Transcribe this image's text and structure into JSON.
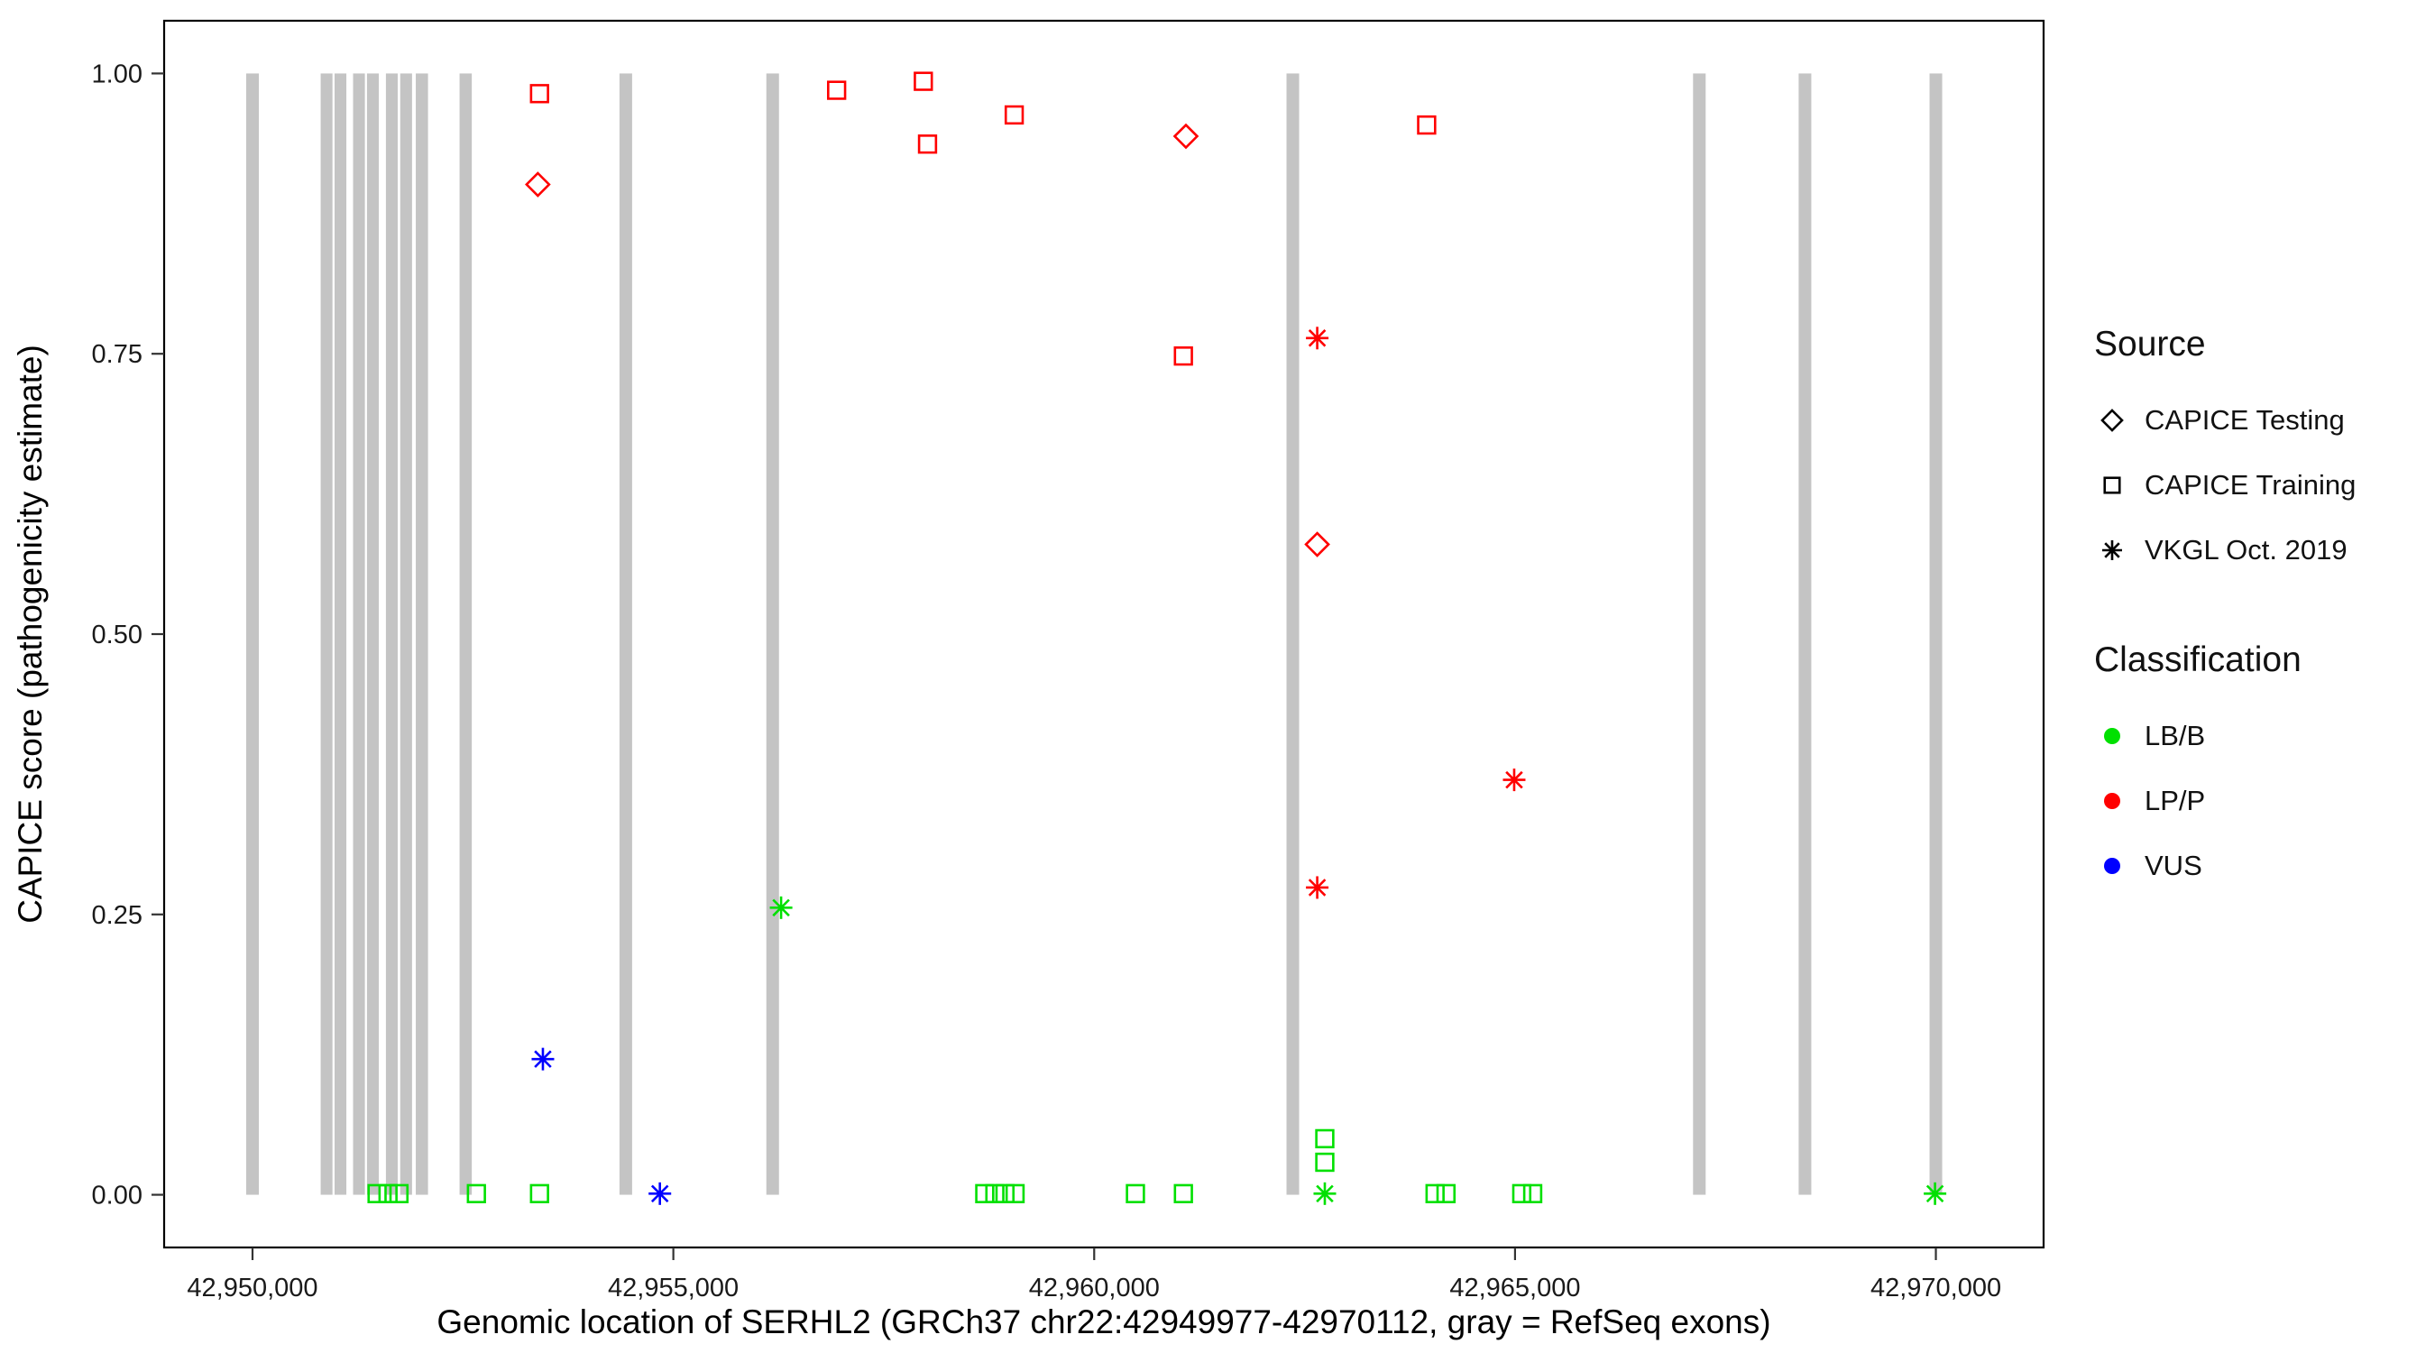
{
  "chart_data": {
    "type": "scatter",
    "title": "",
    "xlabel": "Genomic location of SERHL2 (GRCh37 chr22:42949977-42970112, gray = RefSeq exons)",
    "ylabel": "CAPICE score (pathogenicity estimate)",
    "x_domain": [
      42948950,
      42971280
    ],
    "y_domain": [
      -0.047,
      1.047
    ],
    "x_ticks": [
      {
        "value": 42950000,
        "label": "42,950,000"
      },
      {
        "value": 42955000,
        "label": "42,955,000"
      },
      {
        "value": 42960000,
        "label": "42,960,000"
      },
      {
        "value": 42965000,
        "label": "42,965,000"
      },
      {
        "value": 42970000,
        "label": "42,970,000"
      }
    ],
    "y_ticks": [
      {
        "value": 0.0,
        "label": "0.00"
      },
      {
        "value": 0.25,
        "label": "0.25"
      },
      {
        "value": 0.5,
        "label": "0.50"
      },
      {
        "value": 0.75,
        "label": "0.75"
      },
      {
        "value": 1.0,
        "label": "1.00"
      }
    ],
    "grid": "off",
    "exon_color": "#C4C4C4",
    "exon_y_range": [
      0.0,
      1.0
    ],
    "exons": [
      [
        42949925,
        42950075
      ],
      [
        42950810,
        42950950
      ],
      [
        42950975,
        42951115
      ],
      [
        42951195,
        42951335
      ],
      [
        42951360,
        42951500
      ],
      [
        42951585,
        42951725
      ],
      [
        42951755,
        42951895
      ],
      [
        42951940,
        42952085
      ],
      [
        42952460,
        42952605
      ],
      [
        42954360,
        42954510
      ],
      [
        42956105,
        42956255
      ],
      [
        42962285,
        42962435
      ],
      [
        42967115,
        42967265
      ],
      [
        42968370,
        42968520
      ],
      [
        42969925,
        42970075
      ]
    ],
    "marker_by_source": {
      "CAPICE Testing": "diamond",
      "CAPICE Training": "square",
      "VKGL Oct. 2019": "asterisk"
    },
    "color_by_class": {
      "LB/B": "#00E000",
      "LP/P": "#FF0000",
      "VUS": "#0000FF"
    },
    "points": [
      {
        "x": 42953390,
        "y": 0.901,
        "source": "CAPICE Testing",
        "class": "LP/P"
      },
      {
        "x": 42961090,
        "y": 0.944,
        "source": "CAPICE Testing",
        "class": "LP/P"
      },
      {
        "x": 42962650,
        "y": 0.58,
        "source": "CAPICE Testing",
        "class": "LP/P"
      },
      {
        "x": 42953410,
        "y": 0.982,
        "source": "CAPICE Training",
        "class": "LP/P"
      },
      {
        "x": 42956940,
        "y": 0.985,
        "source": "CAPICE Training",
        "class": "LP/P"
      },
      {
        "x": 42957970,
        "y": 0.993,
        "source": "CAPICE Training",
        "class": "LP/P"
      },
      {
        "x": 42958020,
        "y": 0.937,
        "source": "CAPICE Training",
        "class": "LP/P"
      },
      {
        "x": 42959050,
        "y": 0.963,
        "source": "CAPICE Training",
        "class": "LP/P"
      },
      {
        "x": 42961060,
        "y": 0.748,
        "source": "CAPICE Training",
        "class": "LP/P"
      },
      {
        "x": 42963950,
        "y": 0.954,
        "source": "CAPICE Training",
        "class": "LP/P"
      },
      {
        "x": 42962650,
        "y": 0.764,
        "source": "VKGL Oct. 2019",
        "class": "LP/P"
      },
      {
        "x": 42962650,
        "y": 0.274,
        "source": "VKGL Oct. 2019",
        "class": "LP/P"
      },
      {
        "x": 42964990,
        "y": 0.37,
        "source": "VKGL Oct. 2019",
        "class": "LP/P"
      },
      {
        "x": 42956280,
        "y": 0.256,
        "source": "VKGL Oct. 2019",
        "class": "LB/B"
      },
      {
        "x": 42962740,
        "y": 0.001,
        "source": "VKGL Oct. 2019",
        "class": "LB/B"
      },
      {
        "x": 42969990,
        "y": 0.001,
        "source": "VKGL Oct. 2019",
        "class": "LB/B"
      },
      {
        "x": 42953450,
        "y": 0.121,
        "source": "VKGL Oct. 2019",
        "class": "VUS"
      },
      {
        "x": 42954840,
        "y": 0.001,
        "source": "VKGL Oct. 2019",
        "class": "VUS"
      },
      {
        "x": 42951480,
        "y": 0.001,
        "source": "CAPICE Training",
        "class": "LB/B"
      },
      {
        "x": 42951610,
        "y": 0.001,
        "source": "CAPICE Training",
        "class": "LB/B"
      },
      {
        "x": 42951740,
        "y": 0.001,
        "source": "CAPICE Training",
        "class": "LB/B"
      },
      {
        "x": 42952660,
        "y": 0.001,
        "source": "CAPICE Training",
        "class": "LB/B"
      },
      {
        "x": 42953410,
        "y": 0.001,
        "source": "CAPICE Training",
        "class": "LB/B"
      },
      {
        "x": 42958700,
        "y": 0.001,
        "source": "CAPICE Training",
        "class": "LB/B"
      },
      {
        "x": 42958820,
        "y": 0.001,
        "source": "CAPICE Training",
        "class": "LB/B"
      },
      {
        "x": 42958940,
        "y": 0.001,
        "source": "CAPICE Training",
        "class": "LB/B"
      },
      {
        "x": 42959060,
        "y": 0.001,
        "source": "CAPICE Training",
        "class": "LB/B"
      },
      {
        "x": 42960490,
        "y": 0.001,
        "source": "CAPICE Training",
        "class": "LB/B"
      },
      {
        "x": 42961060,
        "y": 0.001,
        "source": "CAPICE Training",
        "class": "LB/B"
      },
      {
        "x": 42962740,
        "y": 0.05,
        "source": "CAPICE Training",
        "class": "LB/B"
      },
      {
        "x": 42962740,
        "y": 0.029,
        "source": "CAPICE Training",
        "class": "LB/B"
      },
      {
        "x": 42964050,
        "y": 0.001,
        "source": "CAPICE Training",
        "class": "LB/B"
      },
      {
        "x": 42964180,
        "y": 0.001,
        "source": "CAPICE Training",
        "class": "LB/B"
      },
      {
        "x": 42965080,
        "y": 0.001,
        "source": "CAPICE Training",
        "class": "LB/B"
      },
      {
        "x": 42965210,
        "y": 0.001,
        "source": "CAPICE Training",
        "class": "LB/B"
      }
    ],
    "legend": {
      "position": "right",
      "source": {
        "title": "Source",
        "items": [
          {
            "label": "CAPICE Testing",
            "shape": "diamond"
          },
          {
            "label": "CAPICE Training",
            "shape": "square"
          },
          {
            "label": "VKGL Oct. 2019",
            "shape": "asterisk"
          }
        ]
      },
      "classification": {
        "title": "Classification",
        "items": [
          {
            "label": "LB/B",
            "color": "#00E000"
          },
          {
            "label": "LP/P",
            "color": "#FF0000"
          },
          {
            "label": "VUS",
            "color": "#0000FF"
          }
        ]
      }
    }
  }
}
